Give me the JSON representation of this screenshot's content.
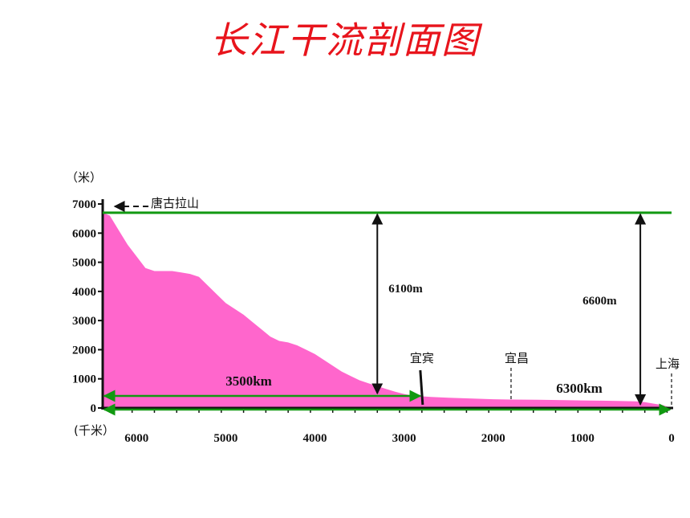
{
  "title": "长江干流剖面图",
  "chart_data": {
    "type": "area",
    "y_unit": "（米）",
    "x_unit": "(千米）",
    "xlim": [
      6380,
      0
    ],
    "ylim": [
      0,
      7000
    ],
    "x_ticks": [
      6000,
      5000,
      4000,
      3000,
      2000,
      1000,
      0
    ],
    "y_ticks": [
      0,
      1000,
      2000,
      3000,
      4000,
      5000,
      6000,
      7000
    ],
    "profile_color": "#ff66cc",
    "reference_line_color": "#119911",
    "series": [
      {
        "x": [
          6380,
          6300,
          6200,
          6100,
          6000,
          5900,
          5800,
          5700,
          5600,
          5500,
          5400,
          5300,
          5200,
          5100,
          5000,
          4900,
          4800,
          4700,
          4600,
          4500,
          4400,
          4300,
          4200,
          4100,
          4000,
          3900,
          3800,
          3700,
          3600,
          3500,
          3400,
          3300,
          3200,
          3100,
          3000,
          2900,
          2800,
          2700,
          2500,
          2300,
          2100,
          2000,
          1800,
          1500,
          1200,
          1000,
          800,
          600,
          400,
          300,
          200,
          100,
          50,
          0
        ],
        "values": [
          6700,
          6600,
          6100,
          5600,
          5200,
          4800,
          4700,
          4700,
          4700,
          4650,
          4600,
          4500,
          4200,
          3900,
          3600,
          3400,
          3200,
          2950,
          2700,
          2450,
          2300,
          2250,
          2150,
          2000,
          1850,
          1650,
          1450,
          1250,
          1100,
          950,
          850,
          750,
          650,
          560,
          480,
          420,
          400,
          380,
          350,
          330,
          310,
          300,
          290,
          280,
          270,
          260,
          250,
          240,
          230,
          200,
          150,
          100,
          50,
          0
        ]
      }
    ],
    "reference_level": 6700,
    "annotations": {
      "source_label": "唐古拉山",
      "span1_label": "6100m",
      "span1_x": 3300,
      "span2_label": "6600m",
      "span2_x": 350,
      "distance1_label": "3500km",
      "distance2_label": "6300km",
      "cities": [
        {
          "name": "宜宾",
          "x": 2800
        },
        {
          "name": "宜昌",
          "x": 1800
        },
        {
          "name": "上海",
          "x": 0
        }
      ]
    }
  }
}
